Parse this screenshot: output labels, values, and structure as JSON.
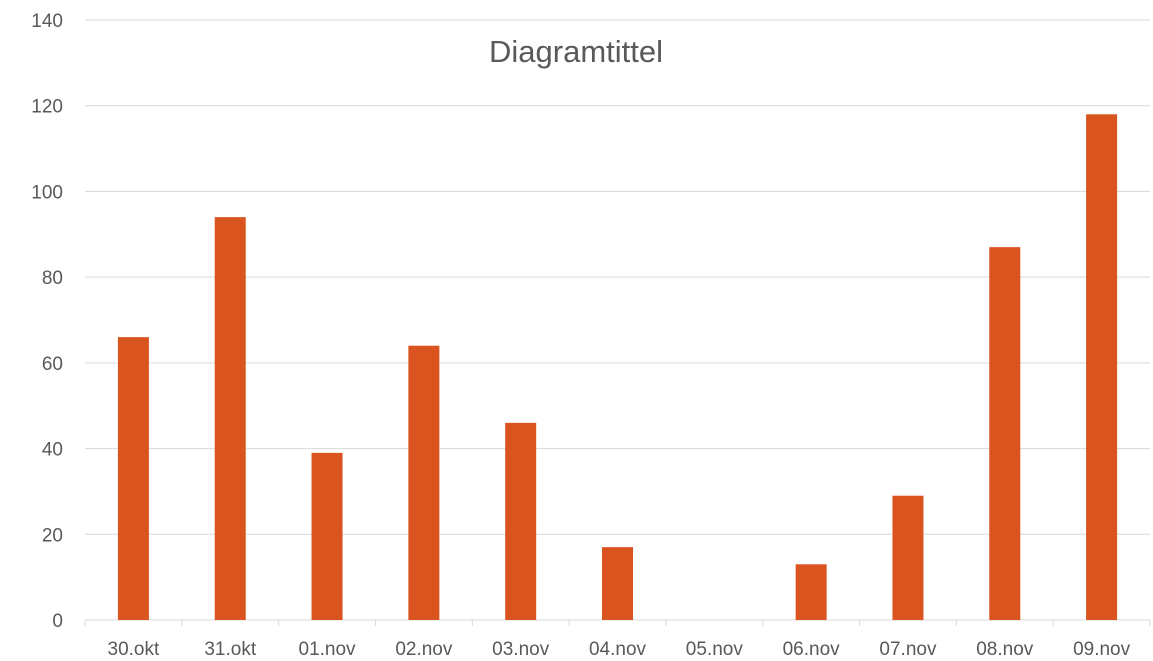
{
  "chart_data": {
    "type": "bar",
    "title": "Diagramtittel",
    "categories": [
      "30.okt",
      "31.okt",
      "01.nov",
      "02.nov",
      "03.nov",
      "04.nov",
      "05.nov",
      "06.nov",
      "07.nov",
      "08.nov",
      "09.nov"
    ],
    "values": [
      66,
      94,
      39,
      64,
      46,
      17,
      0,
      13,
      29,
      87,
      118
    ],
    "ylim": [
      0,
      140
    ],
    "yticks": [
      "0",
      "20",
      "40",
      "60",
      "80",
      "100",
      "120",
      "140"
    ],
    "grid": true,
    "legend": "none",
    "bar_color": "#d9541f",
    "grid_color": "#d9d9d9",
    "text_color": "#595959"
  }
}
